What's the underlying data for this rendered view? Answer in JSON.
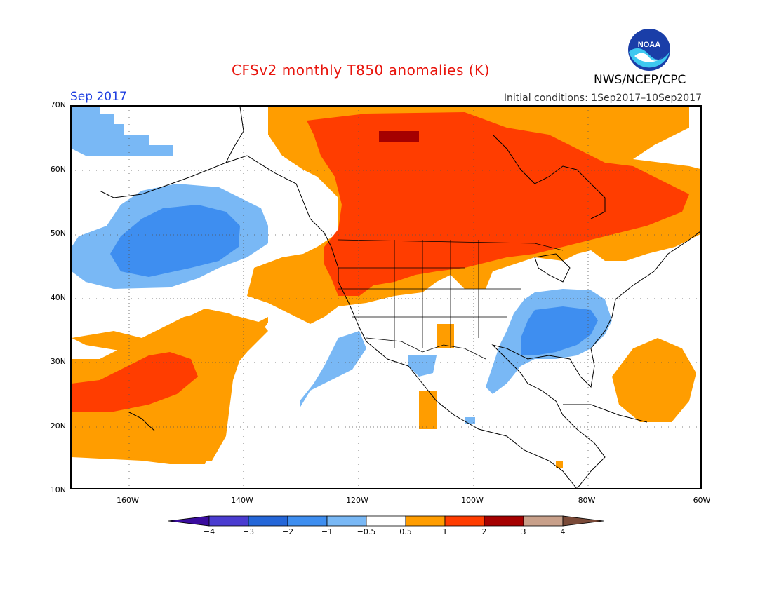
{
  "header": {
    "title": "CFSv2 monthly T850 anomalies (K)",
    "month": "Sep 2017",
    "initial_conditions": "Initial conditions: 1Sep2017–10Sep2017",
    "agency": "NWS/NCEP/CPC",
    "logo_text": "NOAA"
  },
  "map": {
    "lat_labels": [
      "70N",
      "60N",
      "50N",
      "40N",
      "30N",
      "20N",
      "10N"
    ],
    "lon_labels": [
      "160W",
      "140W",
      "120W",
      "100W",
      "80W",
      "60W"
    ],
    "lat_range": [
      10,
      70
    ],
    "lon_range": [
      -170,
      -60
    ],
    "grid_lines": true
  },
  "colorbar": {
    "labels": [
      "−4",
      "−3",
      "−2",
      "−1",
      "−0.5",
      "0.5",
      "1",
      "2",
      "3",
      "4"
    ],
    "colors": [
      "#3a0c9e",
      "#4a3cd0",
      "#2466d8",
      "#3e8ef0",
      "#79b8f5",
      "#ffffff",
      "#ff9d00",
      "#ff3d00",
      "#a50000",
      "#c8a08a",
      "#7a4a38"
    ]
  }
}
